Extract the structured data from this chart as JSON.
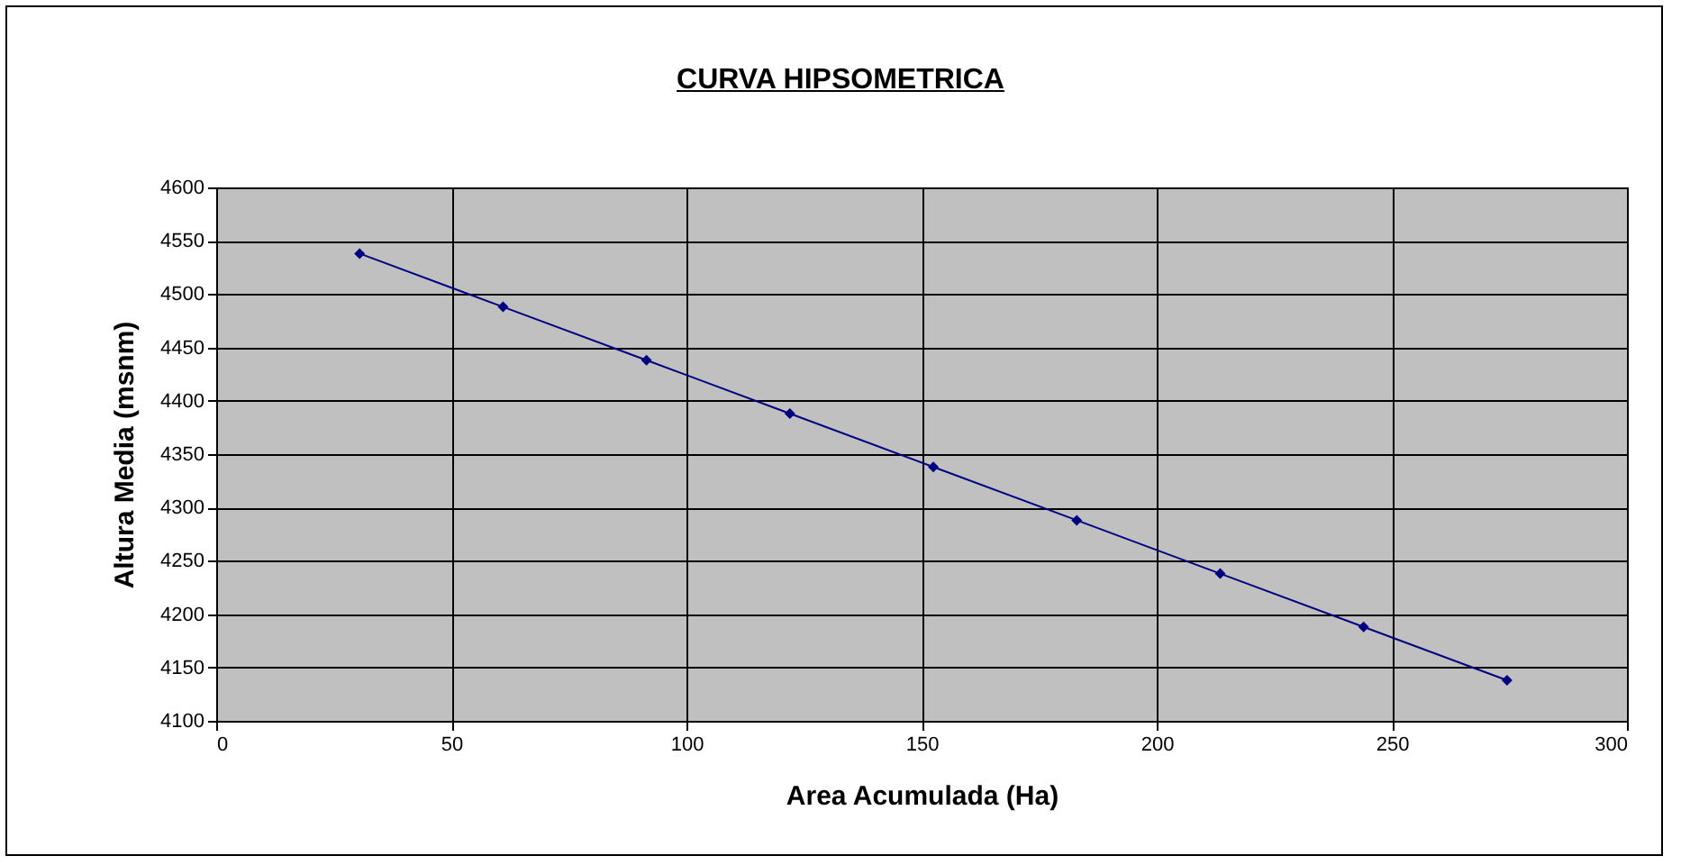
{
  "chart_data": {
    "type": "line",
    "title": "CURVA HIPSOMETRICA",
    "xlabel": "Area Acumulada (Ha)",
    "ylabel": "Altura Media (msnm)",
    "x": [
      30.5,
      61,
      91.5,
      122,
      152.5,
      183,
      213.5,
      244,
      274.5
    ],
    "series": [
      {
        "color": "#000080",
        "values": [
          4538,
          4488,
          4438,
          4388,
          4338,
          4288,
          4238,
          4188,
          4138
        ]
      }
    ],
    "xlim": [
      0,
      300
    ],
    "xticks": [
      0,
      50,
      100,
      150,
      200,
      250,
      300
    ],
    "ylim": [
      4100,
      4600
    ],
    "yticks": [
      4100,
      4150,
      4200,
      4250,
      4300,
      4350,
      4400,
      4450,
      4500,
      4550,
      4600
    ],
    "grid": true,
    "marker": "diamond",
    "line_style": "solid"
  }
}
